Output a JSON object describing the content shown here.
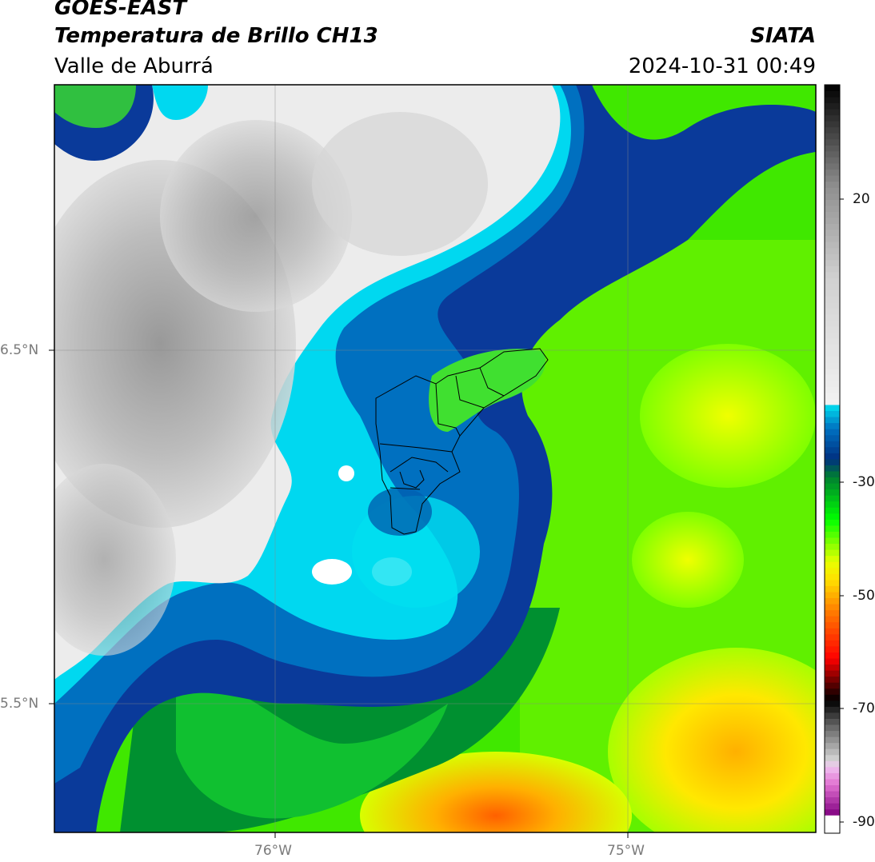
{
  "header": {
    "title_line1": "GOES-EAST",
    "title_line2": "Temperatura de Brillo CH13",
    "region": "Valle de Aburrá",
    "agency": "SIATA",
    "timestamp": "2024-10-31 00:49"
  },
  "map": {
    "longitude_ticks": [
      "76°W",
      "75°W"
    ],
    "latitude_ticks": [
      "6.5°N",
      "5.5°N"
    ],
    "gridlines": true
  },
  "colorbar": {
    "tick_labels": [
      "20",
      "-30",
      "-50",
      "-70",
      "-90"
    ],
    "range": [
      -92,
      32
    ],
    "stops": [
      {
        "v": -92,
        "c": "#ffffff"
      },
      {
        "v": -89,
        "c": "#ffffff"
      },
      {
        "v": -89,
        "c": "#800080"
      },
      {
        "v": -84,
        "c": "#e070d0"
      },
      {
        "v": -81,
        "c": "#f0c0f0"
      },
      {
        "v": -80,
        "c": "#d8d8d8"
      },
      {
        "v": -74,
        "c": "#606060"
      },
      {
        "v": -70,
        "c": "#000000"
      },
      {
        "v": -68,
        "c": "#400000"
      },
      {
        "v": -63,
        "c": "#ff0000"
      },
      {
        "v": -55,
        "c": "#ff8000"
      },
      {
        "v": -50,
        "c": "#ffe000"
      },
      {
        "v": -47,
        "c": "#e8ff00"
      },
      {
        "v": -40,
        "c": "#00ff00"
      },
      {
        "v": -33,
        "c": "#008030"
      },
      {
        "v": -30,
        "c": "#003080"
      },
      {
        "v": -25,
        "c": "#0070c0"
      },
      {
        "v": -21,
        "c": "#00e0f0"
      },
      {
        "v": -21,
        "c": "#f2f2f2"
      },
      {
        "v": 0,
        "c": "#d0d0d0"
      },
      {
        "v": 15,
        "c": "#909090"
      },
      {
        "v": 32,
        "c": "#000000"
      }
    ]
  }
}
